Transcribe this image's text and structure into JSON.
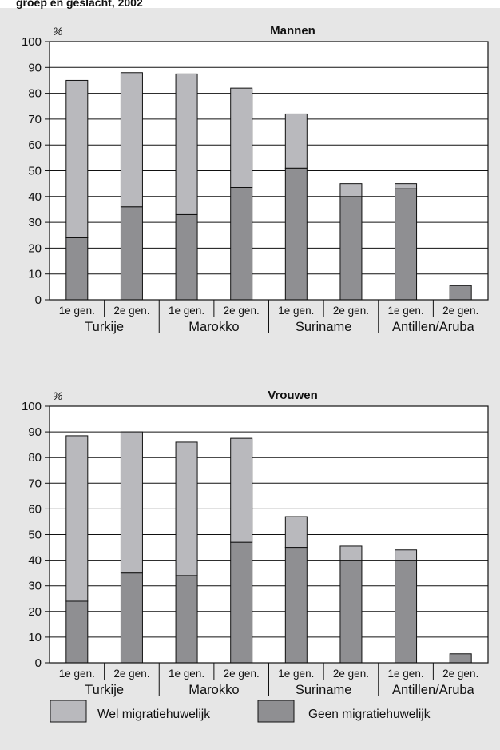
{
  "header_fragment": "groep en geslacht, 2002",
  "colors": {
    "background": "#e6e6e6",
    "plot": "#ffffff",
    "wel": "#b9b9bd",
    "geen": "#8f8f92",
    "line": "#111111"
  },
  "legend": {
    "wel": "Wel migratiehuwelijk",
    "geen": "Geen migratiehuwelijk"
  },
  "chart_data": [
    {
      "type": "bar",
      "stacked": true,
      "title": "Mannen",
      "ylabel": "%",
      "ylim": [
        0,
        100
      ],
      "yticks": [
        0,
        10,
        20,
        30,
        40,
        50,
        60,
        70,
        80,
        90,
        100
      ],
      "grid": true,
      "categories": [
        "1e gen.",
        "2e gen.",
        "1e gen.",
        "2e gen.",
        "1e gen.",
        "2e gen.",
        "1e gen.",
        "2e gen."
      ],
      "groups": [
        "Turkije",
        "Marokko",
        "Suriname",
        "Antillen/Aruba"
      ],
      "series": [
        {
          "name": "Geen migratiehuwelijk",
          "values": [
            24,
            36,
            33,
            43.5,
            51,
            40,
            43,
            5.5
          ]
        },
        {
          "name": "Wel migratiehuwelijk",
          "values": [
            61,
            52,
            54.5,
            38.5,
            21,
            5,
            2,
            0
          ]
        }
      ]
    },
    {
      "type": "bar",
      "stacked": true,
      "title": "Vrouwen",
      "ylabel": "%",
      "ylim": [
        0,
        100
      ],
      "yticks": [
        0,
        10,
        20,
        30,
        40,
        50,
        60,
        70,
        80,
        90,
        100
      ],
      "grid": true,
      "categories": [
        "1e gen.",
        "2e gen.",
        "1e gen.",
        "2e gen.",
        "1e gen.",
        "2e gen.",
        "1e gen.",
        "2e gen."
      ],
      "groups": [
        "Turkije",
        "Marokko",
        "Suriname",
        "Antillen/Aruba"
      ],
      "series": [
        {
          "name": "Geen migratiehuwelijk",
          "values": [
            24,
            35,
            34,
            47,
            45,
            40,
            40,
            3.5
          ]
        },
        {
          "name": "Wel migratiehuwelijk",
          "values": [
            64.5,
            55,
            52,
            40.5,
            12,
            5.5,
            4,
            0
          ]
        }
      ]
    }
  ]
}
